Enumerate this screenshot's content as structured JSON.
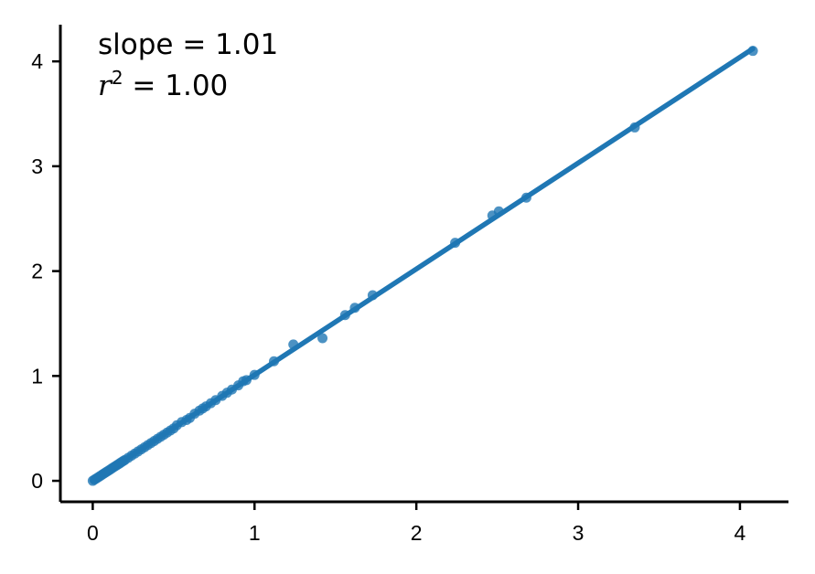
{
  "chart_data": {
    "type": "scatter",
    "title": "",
    "xlabel": "",
    "ylabel": "",
    "xlim": [
      -0.2,
      4.3
    ],
    "ylim": [
      -0.2,
      4.35
    ],
    "x_ticks": [
      0,
      1,
      2,
      3,
      4
    ],
    "y_ticks": [
      0,
      1,
      2,
      3,
      4
    ],
    "x_tick_labels": [
      "0",
      "1",
      "2",
      "3",
      "4"
    ],
    "y_tick_labels": [
      "0",
      "1",
      "2",
      "3",
      "4"
    ],
    "grid": false,
    "annotations": {
      "slope_label": "slope",
      "slope_value": "1.01",
      "r2_label": "r",
      "r2_exponent": "2",
      "r2_value": "1.00"
    },
    "fit_line": {
      "slope": 1.01,
      "intercept": 0.0,
      "x_range": [
        0.0,
        4.08
      ]
    },
    "colors": {
      "points": "#1f77b4",
      "line": "#1f77b4",
      "axis": "#000000"
    },
    "series": [
      {
        "x": [
          0.0,
          0.01,
          0.02,
          0.03,
          0.04,
          0.05,
          0.06,
          0.07,
          0.08,
          0.09,
          0.1,
          0.11,
          0.12,
          0.13,
          0.14,
          0.15,
          0.16,
          0.17,
          0.18,
          0.19,
          0.2,
          0.22,
          0.24,
          0.26,
          0.28,
          0.3,
          0.32,
          0.34,
          0.36,
          0.38,
          0.4,
          0.42,
          0.44,
          0.46,
          0.48,
          0.5,
          0.52,
          0.55,
          0.58,
          0.6,
          0.63,
          0.66,
          0.68,
          0.7,
          0.73,
          0.76,
          0.8,
          0.83,
          0.86,
          0.9,
          0.93,
          0.95,
          1.0,
          1.12,
          1.24,
          1.42,
          1.56,
          1.62,
          1.73,
          2.24,
          2.47,
          2.51,
          2.68,
          3.35,
          4.08
        ],
        "y": [
          0.0,
          0.01,
          0.02,
          0.03,
          0.04,
          0.05,
          0.06,
          0.07,
          0.08,
          0.09,
          0.1,
          0.11,
          0.12,
          0.13,
          0.14,
          0.15,
          0.16,
          0.17,
          0.18,
          0.19,
          0.2,
          0.22,
          0.24,
          0.26,
          0.28,
          0.3,
          0.32,
          0.34,
          0.36,
          0.38,
          0.4,
          0.42,
          0.44,
          0.46,
          0.48,
          0.5,
          0.53,
          0.56,
          0.58,
          0.6,
          0.64,
          0.67,
          0.69,
          0.71,
          0.74,
          0.77,
          0.81,
          0.84,
          0.87,
          0.91,
          0.95,
          0.96,
          1.01,
          1.14,
          1.3,
          1.36,
          1.58,
          1.65,
          1.77,
          2.27,
          2.53,
          2.57,
          2.7,
          3.37,
          4.1
        ]
      }
    ]
  }
}
